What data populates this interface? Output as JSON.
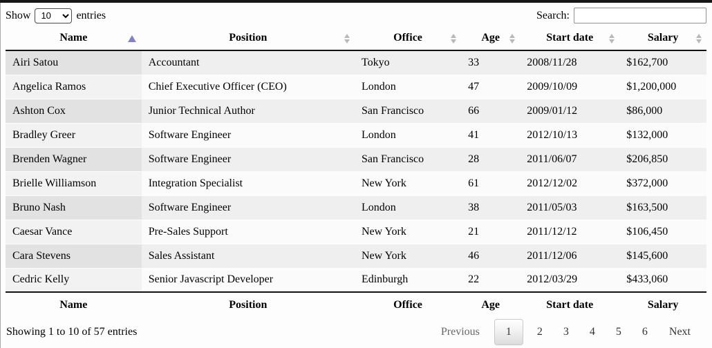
{
  "page": {
    "show_label": "Show",
    "entries_label": "entries",
    "page_length": "10",
    "search_label": "Search:",
    "search_value": "",
    "info": "Showing 1 to 10 of 57 entries"
  },
  "table": {
    "columns": [
      {
        "label": "Name",
        "sort": "asc"
      },
      {
        "label": "Position",
        "sort": "none"
      },
      {
        "label": "Office",
        "sort": "none"
      },
      {
        "label": "Age",
        "sort": "none"
      },
      {
        "label": "Start date",
        "sort": "none"
      },
      {
        "label": "Salary",
        "sort": "none"
      }
    ],
    "rows": [
      [
        "Airi Satou",
        "Accountant",
        "Tokyo",
        "33",
        "2008/11/28",
        "$162,700"
      ],
      [
        "Angelica Ramos",
        "Chief Executive Officer (CEO)",
        "London",
        "47",
        "2009/10/09",
        "$1,200,000"
      ],
      [
        "Ashton Cox",
        "Junior Technical Author",
        "San Francisco",
        "66",
        "2009/01/12",
        "$86,000"
      ],
      [
        "Bradley Greer",
        "Software Engineer",
        "London",
        "41",
        "2012/10/13",
        "$132,000"
      ],
      [
        "Brenden Wagner",
        "Software Engineer",
        "San Francisco",
        "28",
        "2011/06/07",
        "$206,850"
      ],
      [
        "Brielle Williamson",
        "Integration Specialist",
        "New York",
        "61",
        "2012/12/02",
        "$372,000"
      ],
      [
        "Bruno Nash",
        "Software Engineer",
        "London",
        "38",
        "2011/05/03",
        "$163,500"
      ],
      [
        "Caesar Vance",
        "Pre-Sales Support",
        "New York",
        "21",
        "2011/12/12",
        "$106,450"
      ],
      [
        "Cara Stevens",
        "Sales Assistant",
        "New York",
        "46",
        "2011/12/06",
        "$145,600"
      ],
      [
        "Cedric Kelly",
        "Senior Javascript Developer",
        "Edinburgh",
        "22",
        "2012/03/29",
        "$433,060"
      ]
    ]
  },
  "pagination": {
    "previous_label": "Previous",
    "pages": [
      "1",
      "2",
      "3",
      "4",
      "5",
      "6"
    ],
    "current_page": "1",
    "next_label": "Next"
  },
  "colors": {
    "sort_asc_arrow": "#8181c8",
    "sort_neutral_arrow": "#b8b8b8",
    "header_border": "#111111",
    "row_odd": "#efefef",
    "row_even": "#fbfbfb",
    "sorted_cell_odd": "#e2e2e2",
    "sorted_cell_even": "#f2f2f2"
  }
}
